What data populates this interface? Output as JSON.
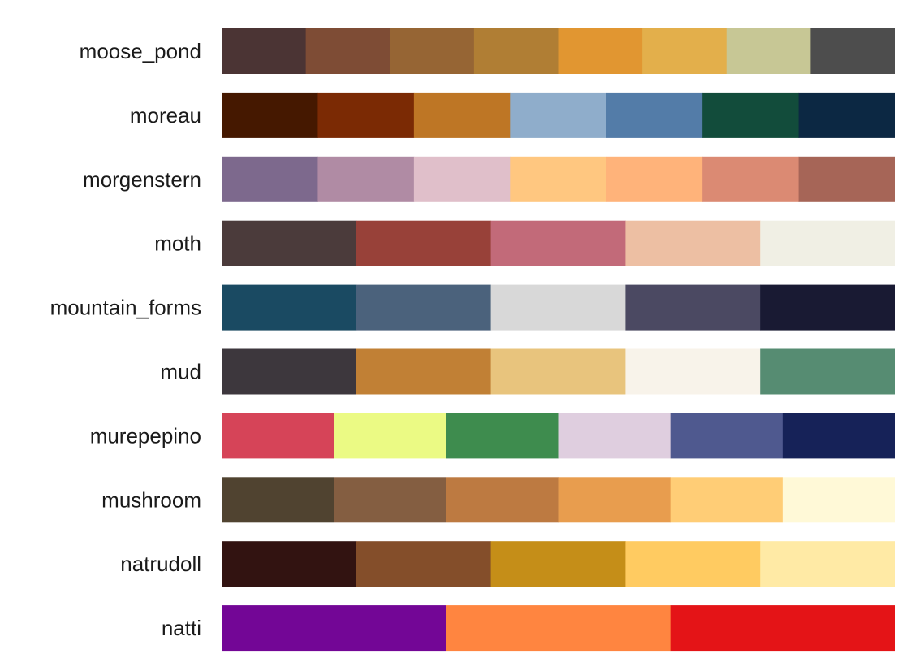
{
  "chart_data": {
    "type": "table",
    "title": "",
    "xlabel": "",
    "ylabel": "",
    "grid": false,
    "palettes": [
      {
        "name": "moose_pond",
        "colors": [
          "#4B3434",
          "#7E4C35",
          "#966534",
          "#B07E34",
          "#E19631",
          "#E3AF4B",
          "#C7C795",
          "#4D4D4D"
        ]
      },
      {
        "name": "moreau",
        "colors": [
          "#451800",
          "#7B2A04",
          "#BE7625",
          "#8FADCB",
          "#537CA8",
          "#124C3B",
          "#0C2843"
        ]
      },
      {
        "name": "morgenstern",
        "colors": [
          "#7D698D",
          "#B08BA4",
          "#E0BFCA",
          "#FFC780",
          "#FFB37A",
          "#DB8A73",
          "#A66557"
        ]
      },
      {
        "name": "moth",
        "colors": [
          "#4B3B3B",
          "#984139",
          "#C26A79",
          "#EDBFA3",
          "#F0EFE4"
        ]
      },
      {
        "name": "mountain_forms",
        "colors": [
          "#1A4A62",
          "#4B627C",
          "#D8D8D8",
          "#4B4962",
          "#191A33"
        ]
      },
      {
        "name": "mud",
        "colors": [
          "#3D373D",
          "#C18035",
          "#E8C47D",
          "#F8F3EA",
          "#568C72"
        ]
      },
      {
        "name": "murepepino",
        "colors": [
          "#D64458",
          "#EBFA84",
          "#3E8C4E",
          "#DFCEDF",
          "#4F598F",
          "#162258"
        ]
      },
      {
        "name": "mushroom",
        "colors": [
          "#504330",
          "#845E41",
          "#BD7A41",
          "#E89D4E",
          "#FFCD76",
          "#FFF9D7"
        ]
      },
      {
        "name": "natrudoll",
        "colors": [
          "#321311",
          "#844E2A",
          "#C58E18",
          "#FFCB61",
          "#FFEAA5"
        ]
      },
      {
        "name": "natti",
        "colors": [
          "#730696",
          "#FF8540",
          "#E41417"
        ]
      }
    ]
  }
}
